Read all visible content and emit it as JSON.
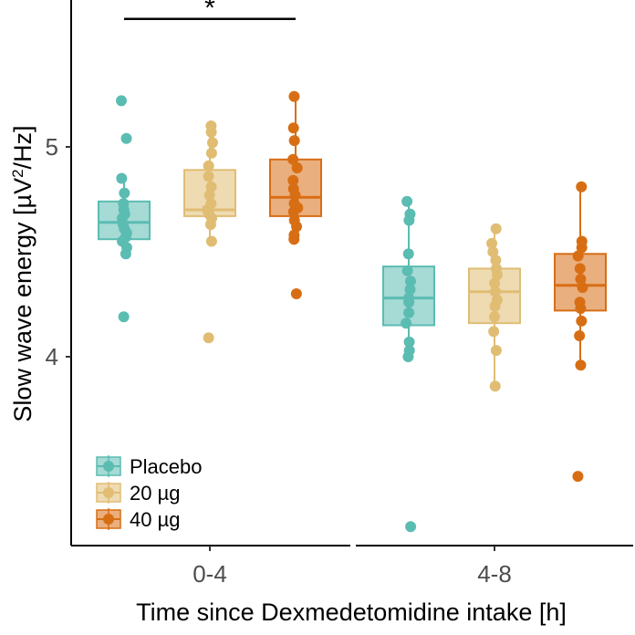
{
  "chart_data": {
    "type": "box",
    "xlabel": "Time since Dexmedetomidine intake [h]",
    "ylabel_parts": [
      "Slow wave energy [µV",
      "2",
      "/Hz]"
    ],
    "ylim": [
      3.1,
      5.7
    ],
    "yticks": [
      {
        "value": 4,
        "label": "4"
      },
      {
        "value": 5,
        "label": "5"
      }
    ],
    "categories": [
      "0-4",
      "4-8"
    ],
    "colors": {
      "Placebo": "#5bbcb2",
      "20 µg": "#e0bd73",
      "40 µg": "#d86e14"
    },
    "legend": {
      "position": "bottom-left",
      "entries": [
        {
          "name": "Placebo",
          "color": "#5bbcb2"
        },
        {
          "name": "20 µg",
          "color": "#e0bd73"
        },
        {
          "name": "40 µg",
          "color": "#d86e14"
        }
      ]
    },
    "series": [
      {
        "name": "Placebo",
        "color": "#5bbcb2",
        "boxes": [
          {
            "category": "0-4",
            "q1": 4.56,
            "median": 4.64,
            "q3": 4.74,
            "whisker_low": 4.48,
            "whisker_high": 4.85,
            "points": [
              5.22,
              5.04,
              4.85,
              4.78,
              4.73,
              4.7,
              4.68,
              4.66,
              4.63,
              4.61,
              4.59,
              4.57,
              4.55,
              4.52,
              4.49,
              4.19
            ]
          },
          {
            "category": "4-8",
            "q1": 4.15,
            "median": 4.28,
            "q3": 4.43,
            "whisker_low": 3.99,
            "whisker_high": 4.74,
            "points": [
              4.74,
              4.68,
              4.65,
              4.49,
              4.41,
              4.36,
              4.32,
              4.28,
              4.26,
              4.21,
              4.16,
              4.07,
              4.03,
              4.0,
              3.19
            ]
          }
        ]
      },
      {
        "name": "20 µg",
        "color": "#e0bd73",
        "boxes": [
          {
            "category": "0-4",
            "q1": 4.67,
            "median": 4.7,
            "q3": 4.89,
            "whisker_low": 4.55,
            "whisker_high": 5.1,
            "points": [
              5.1,
              5.07,
              5.02,
              4.97,
              4.91,
              4.86,
              4.81,
              4.77,
              4.73,
              4.7,
              4.68,
              4.66,
              4.63,
              4.55,
              4.09
            ]
          },
          {
            "category": "4-8",
            "q1": 4.16,
            "median": 4.31,
            "q3": 4.42,
            "whisker_low": 3.86,
            "whisker_high": 4.61,
            "points": [
              4.61,
              4.54,
              4.5,
              4.46,
              4.42,
              4.39,
              4.35,
              4.31,
              4.27,
              4.24,
              4.19,
              4.12,
              4.03,
              3.86
            ]
          }
        ]
      },
      {
        "name": "40 µg",
        "color": "#d86e14",
        "boxes": [
          {
            "category": "0-4",
            "q1": 4.67,
            "median": 4.76,
            "q3": 4.94,
            "whisker_low": 4.57,
            "whisker_high": 5.24,
            "points": [
              5.24,
              5.09,
              5.03,
              4.94,
              4.9,
              4.84,
              4.8,
              4.77,
              4.73,
              4.71,
              4.69,
              4.65,
              4.62,
              4.58,
              4.56,
              4.3
            ]
          },
          {
            "category": "4-8",
            "q1": 4.22,
            "median": 4.34,
            "q3": 4.49,
            "whisker_low": 3.96,
            "whisker_high": 4.81,
            "points": [
              4.81,
              4.55,
              4.52,
              4.48,
              4.42,
              4.37,
              4.33,
              4.26,
              4.23,
              4.17,
              4.1,
              3.96,
              3.43
            ]
          }
        ]
      }
    ],
    "annotations": [
      {
        "type": "significance",
        "label": "*",
        "category": "0-4",
        "from_series": "Placebo",
        "to_series": "40 µg",
        "y": 5.61
      }
    ]
  }
}
